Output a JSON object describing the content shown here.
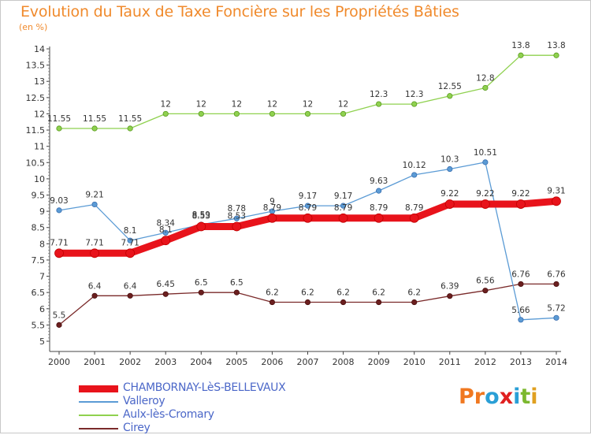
{
  "title": "Evolution du Taux de Taxe Foncière sur les Propriétés Bâties",
  "subtitle": "(en %)",
  "logo": {
    "text": "Proxiti",
    "letters": [
      "P",
      "r",
      "o",
      "x",
      "i",
      "t",
      "i"
    ],
    "colors": [
      "#f07820",
      "#f07820",
      "#2a9fd6",
      "#e02020",
      "#2a9fd6",
      "#7cb82f",
      "#e0a020"
    ]
  },
  "chart_data": {
    "type": "line",
    "title": "Evolution du Taux de Taxe Foncière sur les Propriétés Bâties",
    "ylabel": "(en %)",
    "xlabel": "",
    "x": [
      "2000",
      "2001",
      "2002",
      "2003",
      "2004",
      "2005",
      "2006",
      "2007",
      "2008",
      "2009",
      "2010",
      "2011",
      "2012",
      "2013",
      "2014"
    ],
    "ylim": [
      5,
      14
    ],
    "yticks": [
      "5",
      "5.5",
      "6",
      "6.5",
      "7",
      "7.5",
      "8",
      "8.5",
      "9",
      "9.5",
      "10",
      "10.5",
      "11",
      "11.5",
      "12",
      "12.5",
      "13",
      "13.5",
      "14"
    ],
    "grid": false,
    "legend_position": "bottom-left",
    "series": [
      {
        "name": "CHAMBORNAY-LèS-BELLEVAUX",
        "color": "#e8131b",
        "values": [
          7.71,
          7.71,
          7.71,
          8.1,
          8.53,
          8.53,
          8.79,
          8.79,
          8.79,
          8.79,
          8.79,
          9.22,
          9.22,
          9.22,
          9.31
        ],
        "labels": [
          "7.71",
          "7.71",
          "7.71",
          "8.1",
          "8.53",
          "8.53",
          "8.79",
          "8.79",
          "8.79",
          "8.79",
          "8.79",
          "9.22",
          "9.22",
          "9.22",
          "9.31"
        ]
      },
      {
        "name": "Valleroy",
        "color": "#5b9bd5",
        "values": [
          9.03,
          9.21,
          8.1,
          8.34,
          8.59,
          8.78,
          9,
          9.17,
          9.17,
          9.63,
          10.12,
          10.3,
          10.51,
          5.66,
          5.72
        ],
        "labels": [
          "9.03",
          "9.21",
          "8.1",
          "8.34",
          "8.59",
          "8.78",
          "9",
          "9.17",
          "9.17",
          "9.63",
          "10.12",
          "10.3",
          "10.51",
          "5.66",
          "5.72"
        ]
      },
      {
        "name": "Aulx-lès-Cromary",
        "color": "#8fd14f",
        "values": [
          11.55,
          11.55,
          11.55,
          12,
          12,
          12,
          12,
          12,
          12,
          12.3,
          12.3,
          12.55,
          12.8,
          13.8,
          13.8
        ],
        "labels": [
          "11.55",
          "11.55",
          "11.55",
          "12",
          "12",
          "12",
          "12",
          "12",
          "12",
          "12.3",
          "12.3",
          "12.55",
          "12.8",
          "13.8",
          "13.8"
        ]
      },
      {
        "name": "Cirey",
        "color": "#7a2a2a",
        "values": [
          5.5,
          6.4,
          6.4,
          6.45,
          6.5,
          6.5,
          6.2,
          6.2,
          6.2,
          6.2,
          6.2,
          6.39,
          6.56,
          6.76,
          6.76
        ],
        "labels": [
          "5.5",
          "6.4",
          "6.4",
          "6.45",
          "6.5",
          "6.5",
          "6.2",
          "6.2",
          "6.2",
          "6.2",
          "6.2",
          "6.39",
          "6.56",
          "6.76",
          "6.76"
        ]
      }
    ]
  }
}
